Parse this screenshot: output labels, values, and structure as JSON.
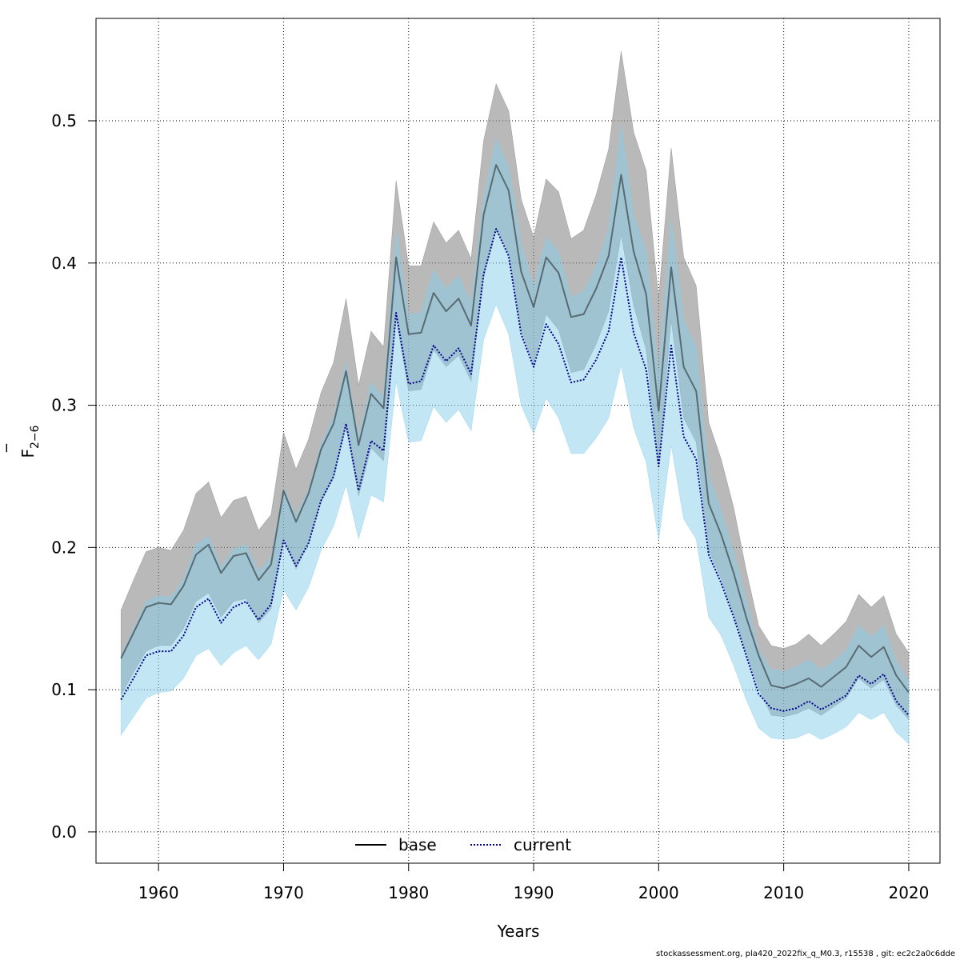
{
  "chart_data": {
    "type": "line",
    "xlabel": "Years",
    "ylabel": "F",
    "ylabel_bar": "‾",
    "ylabel_sub": "2−6",
    "xlim": [
      1955,
      2022.5
    ],
    "ylim": [
      -0.022,
      0.572
    ],
    "x_ticks": [
      1960,
      1970,
      1980,
      1990,
      2000,
      2010,
      2020
    ],
    "y_ticks": [
      0.0,
      0.1,
      0.2,
      0.3,
      0.4,
      0.5
    ],
    "y_tick_labels": [
      "0.0",
      "0.1",
      "0.2",
      "0.3",
      "0.4",
      "0.5"
    ],
    "grid": true,
    "legend_position": "bottom-center",
    "x": [
      1957,
      1958,
      1959,
      1960,
      1961,
      1962,
      1963,
      1964,
      1965,
      1966,
      1967,
      1968,
      1969,
      1970,
      1971,
      1972,
      1973,
      1974,
      1975,
      1976,
      1977,
      1978,
      1979,
      1980,
      1981,
      1982,
      1983,
      1984,
      1985,
      1986,
      1987,
      1988,
      1989,
      1990,
      1991,
      1992,
      1993,
      1994,
      1995,
      1996,
      1997,
      1998,
      1999,
      2000,
      2001,
      2002,
      2003,
      2004,
      2005,
      2006,
      2007,
      2008,
      2009,
      2010,
      2011,
      2012,
      2013,
      2014,
      2015,
      2016,
      2017,
      2018,
      2019,
      2020
    ],
    "series": [
      {
        "name": "base",
        "line_color": "#000000",
        "band_color": "#808080",
        "values": [
          0.122,
          0.14,
          0.158,
          0.161,
          0.16,
          0.173,
          0.195,
          0.202,
          0.182,
          0.194,
          0.196,
          0.177,
          0.188,
          0.24,
          0.218,
          0.238,
          0.269,
          0.287,
          0.324,
          0.272,
          0.308,
          0.298,
          0.404,
          0.35,
          0.351,
          0.379,
          0.366,
          0.375,
          0.356,
          0.434,
          0.469,
          0.451,
          0.394,
          0.369,
          0.404,
          0.393,
          0.362,
          0.364,
          0.382,
          0.405,
          0.462,
          0.408,
          0.378,
          0.296,
          0.397,
          0.327,
          0.31,
          0.231,
          0.209,
          0.182,
          0.151,
          0.124,
          0.103,
          0.101,
          0.104,
          0.108,
          0.102,
          0.109,
          0.116,
          0.131,
          0.123,
          0.13,
          0.11,
          0.098
        ],
        "lower": [
          0.096,
          0.112,
          0.127,
          0.131,
          0.131,
          0.143,
          0.162,
          0.168,
          0.151,
          0.162,
          0.164,
          0.147,
          0.157,
          0.205,
          0.185,
          0.203,
          0.232,
          0.249,
          0.285,
          0.236,
          0.27,
          0.261,
          0.361,
          0.31,
          0.311,
          0.339,
          0.327,
          0.335,
          0.317,
          0.39,
          0.424,
          0.407,
          0.353,
          0.329,
          0.364,
          0.353,
          0.323,
          0.325,
          0.343,
          0.366,
          0.42,
          0.37,
          0.339,
          0.257,
          0.36,
          0.291,
          0.274,
          0.198,
          0.178,
          0.153,
          0.126,
          0.101,
          0.082,
          0.081,
          0.083,
          0.087,
          0.082,
          0.088,
          0.094,
          0.108,
          0.101,
          0.107,
          0.089,
          0.079
        ],
        "upper": [
          0.156,
          0.177,
          0.197,
          0.2,
          0.198,
          0.212,
          0.238,
          0.246,
          0.221,
          0.233,
          0.236,
          0.212,
          0.223,
          0.281,
          0.255,
          0.276,
          0.309,
          0.33,
          0.375,
          0.314,
          0.352,
          0.341,
          0.458,
          0.398,
          0.398,
          0.429,
          0.414,
          0.423,
          0.403,
          0.486,
          0.526,
          0.507,
          0.445,
          0.418,
          0.459,
          0.45,
          0.417,
          0.423,
          0.448,
          0.48,
          0.549,
          0.492,
          0.465,
          0.375,
          0.481,
          0.404,
          0.384,
          0.288,
          0.262,
          0.228,
          0.184,
          0.145,
          0.131,
          0.129,
          0.132,
          0.139,
          0.131,
          0.139,
          0.148,
          0.167,
          0.158,
          0.166,
          0.139,
          0.126
        ]
      },
      {
        "name": "current",
        "line_color": "#00008b",
        "band_color": "#87ceeb",
        "values": [
          0.093,
          0.108,
          0.124,
          0.127,
          0.127,
          0.138,
          0.158,
          0.164,
          0.147,
          0.158,
          0.162,
          0.149,
          0.16,
          0.205,
          0.187,
          0.203,
          0.233,
          0.25,
          0.287,
          0.24,
          0.275,
          0.268,
          0.365,
          0.315,
          0.317,
          0.342,
          0.331,
          0.34,
          0.322,
          0.392,
          0.424,
          0.405,
          0.35,
          0.327,
          0.357,
          0.343,
          0.316,
          0.318,
          0.332,
          0.352,
          0.404,
          0.351,
          0.325,
          0.257,
          0.342,
          0.278,
          0.262,
          0.195,
          0.175,
          0.151,
          0.124,
          0.097,
          0.087,
          0.085,
          0.087,
          0.092,
          0.086,
          0.091,
          0.096,
          0.11,
          0.104,
          0.111,
          0.092,
          0.082
        ],
        "lower": [
          0.068,
          0.081,
          0.094,
          0.098,
          0.099,
          0.108,
          0.124,
          0.129,
          0.117,
          0.126,
          0.131,
          0.121,
          0.132,
          0.17,
          0.156,
          0.172,
          0.198,
          0.215,
          0.244,
          0.206,
          0.237,
          0.232,
          0.317,
          0.274,
          0.275,
          0.299,
          0.288,
          0.297,
          0.282,
          0.346,
          0.371,
          0.35,
          0.3,
          0.28,
          0.305,
          0.291,
          0.266,
          0.266,
          0.277,
          0.291,
          0.328,
          0.284,
          0.26,
          0.205,
          0.272,
          0.22,
          0.206,
          0.151,
          0.138,
          0.117,
          0.093,
          0.073,
          0.066,
          0.065,
          0.066,
          0.07,
          0.065,
          0.069,
          0.074,
          0.084,
          0.079,
          0.084,
          0.07,
          0.062
        ],
        "upper": [
          0.124,
          0.143,
          0.162,
          0.166,
          0.165,
          0.178,
          0.202,
          0.208,
          0.186,
          0.199,
          0.202,
          0.183,
          0.193,
          0.242,
          0.222,
          0.241,
          0.273,
          0.292,
          0.33,
          0.278,
          0.316,
          0.306,
          0.423,
          0.364,
          0.365,
          0.395,
          0.382,
          0.391,
          0.372,
          0.446,
          0.487,
          0.468,
          0.414,
          0.383,
          0.418,
          0.408,
          0.376,
          0.38,
          0.398,
          0.424,
          0.497,
          0.434,
          0.408,
          0.321,
          0.431,
          0.36,
          0.341,
          0.251,
          0.226,
          0.197,
          0.163,
          0.128,
          0.114,
          0.113,
          0.116,
          0.121,
          0.114,
          0.12,
          0.128,
          0.145,
          0.137,
          0.145,
          0.12,
          0.106
        ]
      }
    ]
  },
  "footer": "stockassessment.org, pla420_2022fix_q_M0.3, r15538 , git: ec2c2a0c6dde"
}
